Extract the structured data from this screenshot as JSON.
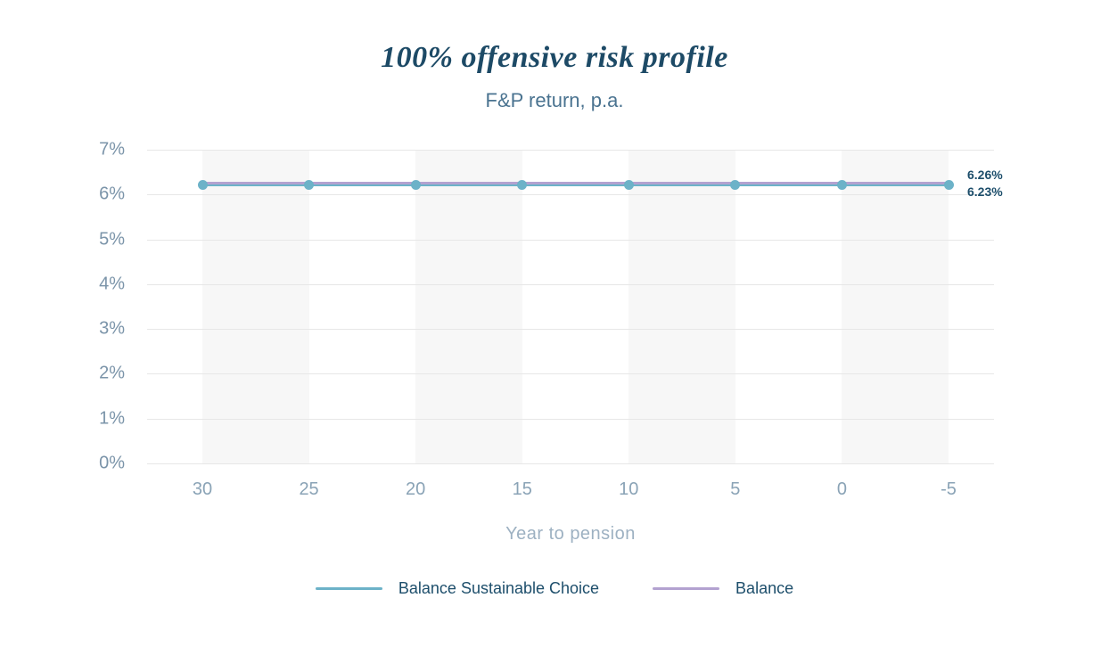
{
  "chart_data": {
    "type": "line",
    "title": "100% offensive risk profile",
    "subtitle": "F&P return, p.a.",
    "xlabel": "Year to pension",
    "ylabel": "",
    "x": [
      30,
      25,
      20,
      15,
      10,
      5,
      0,
      -5
    ],
    "x_tick_labels": [
      "30",
      "25",
      "20",
      "15",
      "10",
      "5",
      "0",
      "-5"
    ],
    "y_tick_labels": [
      "7%",
      "6%",
      "5%",
      "4%",
      "3%",
      "2%",
      "1%",
      "0%"
    ],
    "ylim": [
      0,
      7
    ],
    "grid": "horizontal gridlines on, alternating vertical background bands between x ticks",
    "legend_position": "bottom",
    "series": [
      {
        "name": "Balance Sustainable Choice",
        "color": "#6cb2c8",
        "values": [
          6.23,
          6.23,
          6.23,
          6.23,
          6.23,
          6.23,
          6.23,
          6.23
        ],
        "markers": true,
        "end_label": "6.23%"
      },
      {
        "name": "Balance",
        "color": "#b3a2d0",
        "values": [
          6.26,
          6.26,
          6.26,
          6.26,
          6.26,
          6.26,
          6.26,
          6.26
        ],
        "markers": false,
        "end_label": "6.26%"
      }
    ],
    "end_labels": [
      "6.26%",
      "6.23%"
    ]
  },
  "colors": {
    "title_text": "#1d4a66",
    "subtitle_text": "#4a7390",
    "y_tick_text": "#7b94a9",
    "x_tick_text": "#8aa3b6",
    "axis_title_text": "#9db1c2",
    "end_label_text": "#1d4e6b",
    "legend_text": "#1d4e6b",
    "gridline": "#e7e7e7",
    "band": "#f7f7f7",
    "teal_line": "#6cb2c8",
    "purple_line": "#b3a2d0",
    "background": "#ffffff"
  }
}
